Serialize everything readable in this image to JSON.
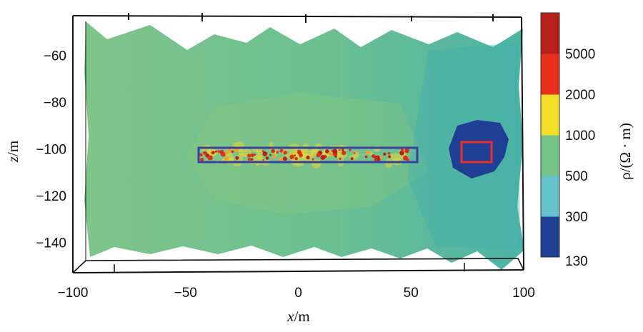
{
  "chart_data": {
    "type": "heatmap",
    "title": "",
    "xlabel": "x/m",
    "ylabel": "z/m",
    "xlim": [
      -100,
      100
    ],
    "ylim": [
      -153,
      -43
    ],
    "x_ticks": [
      -100,
      -50,
      0,
      50,
      100
    ],
    "y_ticks": [
      -60,
      -80,
      -100,
      -120,
      -140
    ],
    "x_tick_labels": [
      "−100",
      "−50",
      "0",
      "50",
      "100"
    ],
    "y_tick_labels": [
      "−60",
      "−80",
      "−100",
      "−120",
      "−140"
    ],
    "colorbar": {
      "label": "ρ/(Ω · m)",
      "tick_labels": [
        "130",
        "300",
        "500",
        "1000",
        "2000",
        "5000"
      ],
      "segments": [
        {
          "from": "130",
          "to": "300",
          "color": "#1f3f94"
        },
        {
          "from": "300",
          "to": "500",
          "color": "#66c3cc"
        },
        {
          "from": "500",
          "to": "1000",
          "color": "#77c489"
        },
        {
          "from": "1000",
          "to": "2000",
          "color": "#f3de2a"
        },
        {
          "from": "2000",
          "to": "5000",
          "color": "#e8301f"
        },
        {
          "from": "5000",
          "to": "max",
          "color": "#b8201c"
        }
      ]
    },
    "background_resistivity": "500-1000",
    "regions": [
      {
        "name": "high-resistivity band",
        "x": [
          -45,
          52
        ],
        "z": [
          -107,
          -100
        ],
        "range": "2000-5000",
        "outline_color": "#3b3fa0"
      },
      {
        "name": "low-resistivity body",
        "x": [
          66,
          92
        ],
        "z": [
          -115,
          -86
        ],
        "range": "130-300"
      },
      {
        "name": "target box",
        "x": [
          72,
          85
        ],
        "z": [
          -107,
          -99
        ],
        "outline_color": "#e8302a"
      }
    ],
    "grid": false,
    "legend": "colorbar right"
  }
}
